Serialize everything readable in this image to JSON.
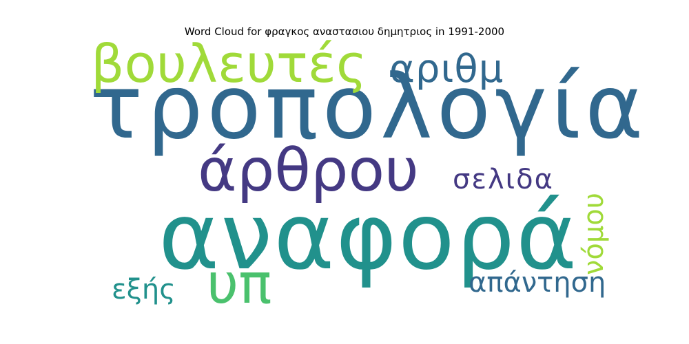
{
  "title": "Word Cloud for φραγκος αναστασιου δημητριος in 1991-2000",
  "words": [
    {
      "text": "τροπολογία",
      "color": "#31688e"
    },
    {
      "text": "αναφορά",
      "color": "#21918c"
    },
    {
      "text": "άρθρου",
      "color": "#443983"
    },
    {
      "text": "βουλευτές",
      "color": "#a0da39"
    },
    {
      "text": "αριθμ",
      "color": "#31688e"
    },
    {
      "text": "σελιδα",
      "color": "#443983"
    },
    {
      "text": "υπ",
      "color": "#4ac16d"
    },
    {
      "text": "απάντηση",
      "color": "#31688e"
    },
    {
      "text": "εξής",
      "color": "#21918c"
    },
    {
      "text": "νόμου",
      "color": "#a0da39"
    }
  ]
}
